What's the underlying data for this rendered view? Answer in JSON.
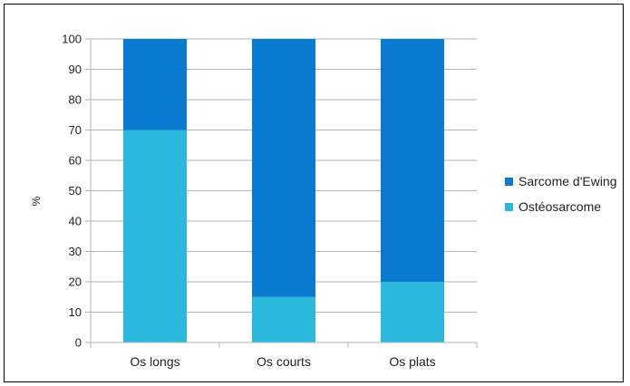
{
  "chart_data": {
    "type": "bar",
    "stacked": true,
    "categories": [
      "Os longs",
      "Os courts",
      "Os plats"
    ],
    "series": [
      {
        "name": "Ostéosarcome",
        "values": [
          70,
          15,
          20
        ],
        "color": "#2ab8dc"
      },
      {
        "name": "Sarcome d'Ewing",
        "values": [
          30,
          85,
          80
        ],
        "color": "#0a7bd0"
      }
    ],
    "ylabel": "%",
    "xlabel": "",
    "ylim": [
      0,
      100
    ],
    "yticks": [
      0,
      10,
      20,
      30,
      40,
      50,
      60,
      70,
      80,
      90,
      100
    ],
    "grid": true,
    "legend_position": "right",
    "legend_order": [
      "Sarcome d'Ewing",
      "Ostéosarcome"
    ]
  }
}
